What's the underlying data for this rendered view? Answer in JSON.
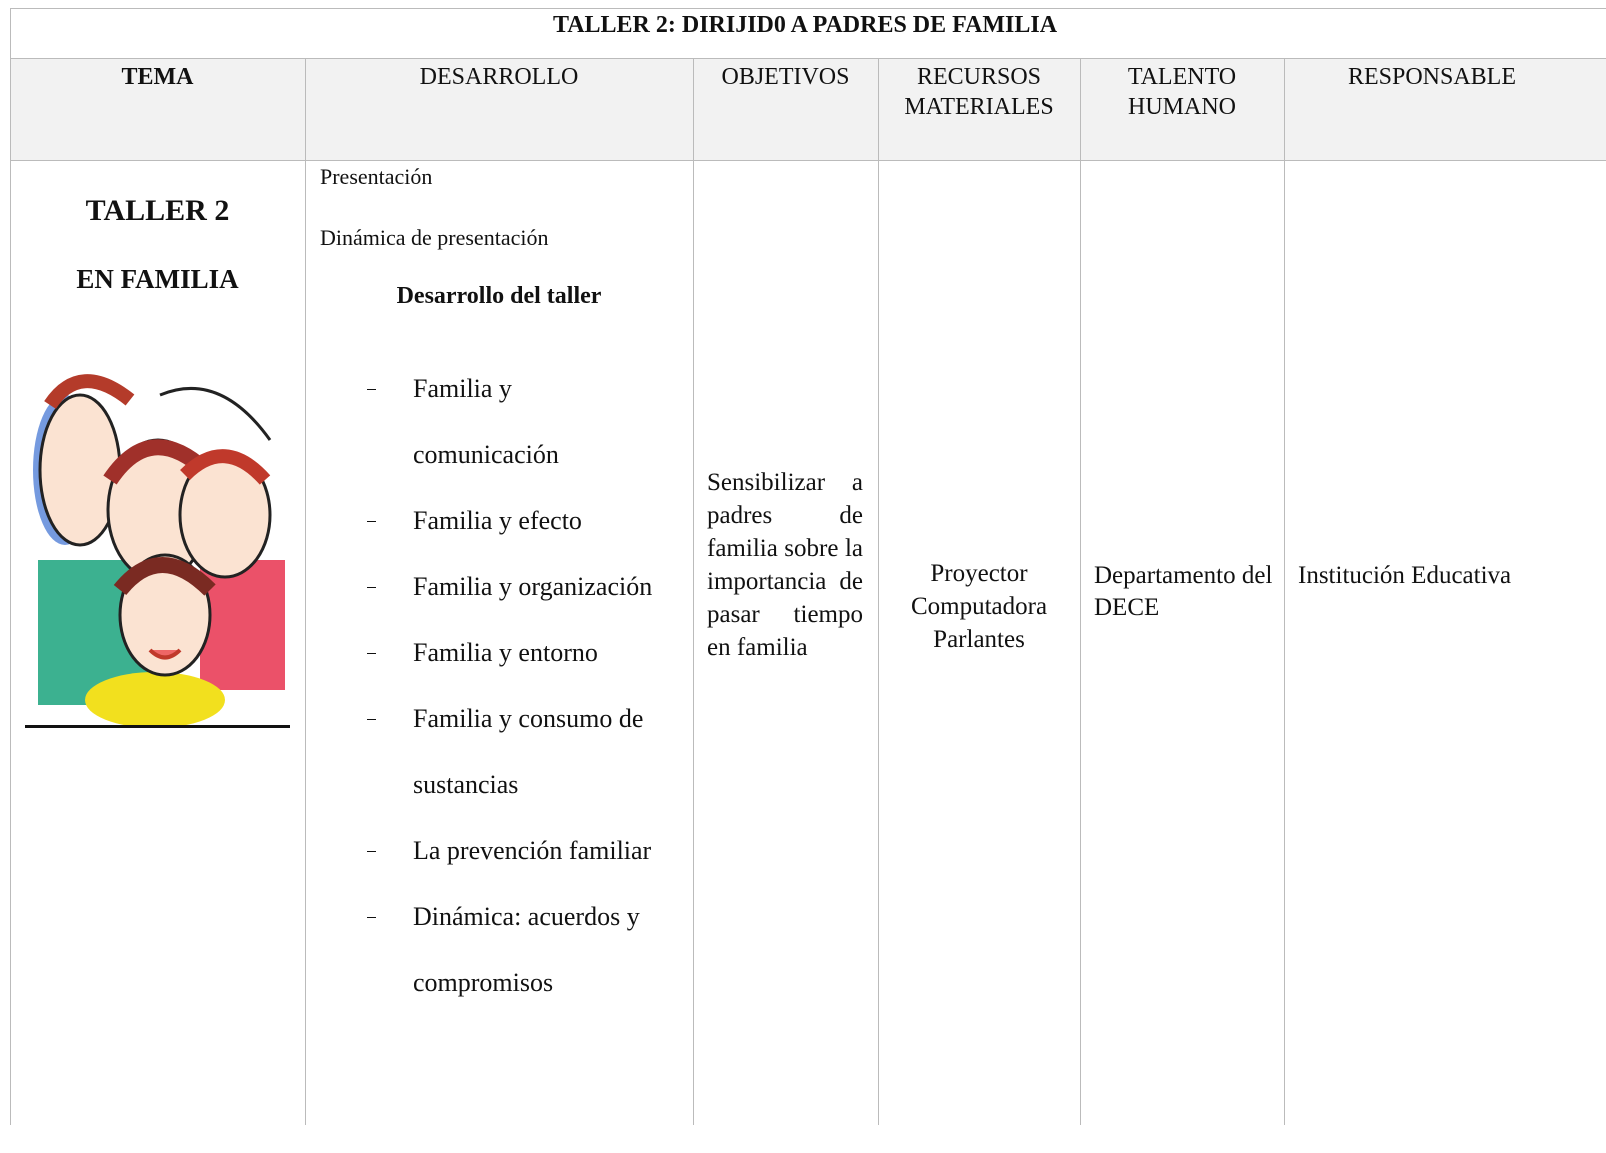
{
  "title": "TALLER 2: DIRIJID0 A PADRES DE FAMILIA",
  "table": {
    "headers": [
      "TEMA",
      "DESARROLLO",
      "OBJETIVOS",
      "RECURSOS MATERIALES",
      "TALENTO HUMANO",
      "RESPONSABLE"
    ],
    "row": {
      "tema": [
        "TALLER 2",
        "EN FAMILIA"
      ],
      "desarrollo": {
        "intro": [
          "Presentación",
          "Dinámica de presentación"
        ],
        "subtitle": "Desarrollo del taller",
        "items": [
          [
            "Familia y",
            "comunicación"
          ],
          [
            "Familia y efecto"
          ],
          [
            "Familia y organización"
          ],
          [
            "Familia y entorno"
          ],
          [
            "Familia y consumo de",
            "sustancias"
          ],
          [
            "La prevención familiar"
          ],
          [
            "Dinámica: acuerdos y",
            "compromisos"
          ]
        ]
      },
      "objetivos": "Sensibilizar a padres de familia sobre la importancia de pasar tiempo en familia",
      "recursos": [
        "Proyector",
        "Computadora",
        "Parlantes"
      ],
      "talento": "Departamento del DECE",
      "responsable": "Institución Educativa"
    }
  }
}
